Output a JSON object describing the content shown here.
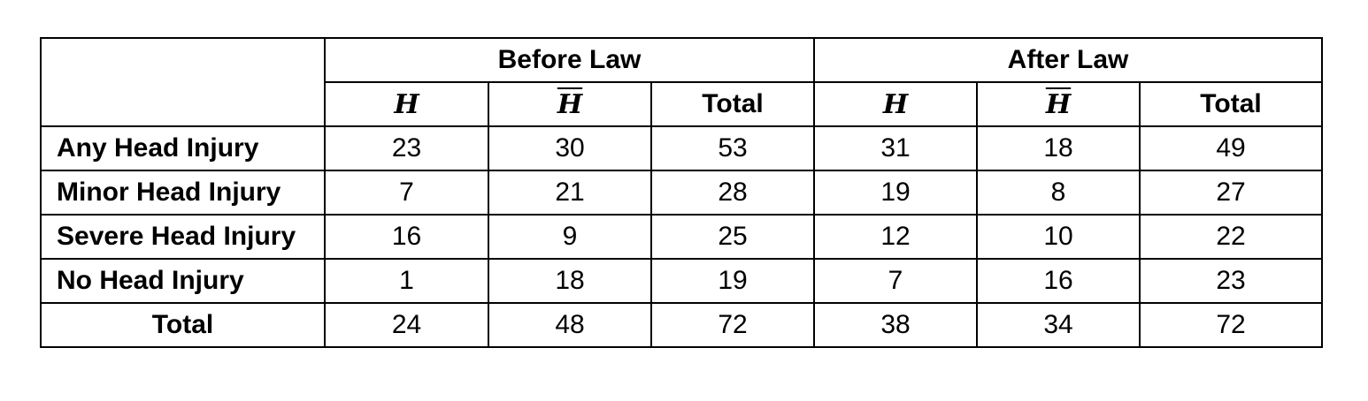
{
  "groups": [
    "Before Law",
    "After Law"
  ],
  "subheaders": [
    "H",
    "H",
    "Total",
    "H",
    "H",
    "Total"
  ],
  "rows": [
    {
      "label": "Any Head Injury",
      "values": [
        "23",
        "30",
        "53",
        "31",
        "18",
        "49"
      ]
    },
    {
      "label": "Minor Head Injury",
      "values": [
        "7",
        "21",
        "28",
        "19",
        "8",
        "27"
      ]
    },
    {
      "label": "Severe Head Injury",
      "values": [
        "16",
        "9",
        "25",
        "12",
        "10",
        "22"
      ]
    },
    {
      "label": "No Head Injury",
      "values": [
        "1",
        "18",
        "19",
        "7",
        "16",
        "23"
      ]
    },
    {
      "label": "Total",
      "values": [
        "24",
        "48",
        "72",
        "38",
        "34",
        "72"
      ]
    }
  ]
}
